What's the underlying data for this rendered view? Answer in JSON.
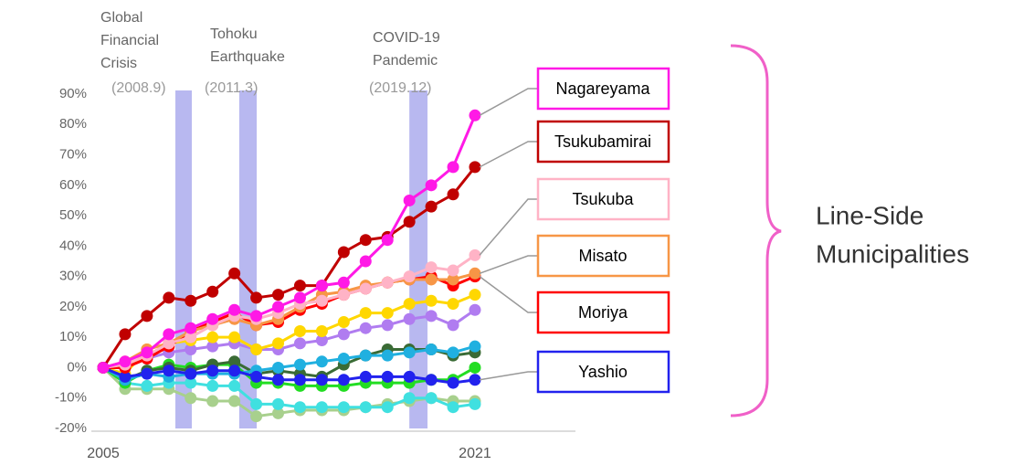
{
  "chart_data": {
    "type": "line",
    "categories": [
      "2005",
      null,
      null,
      null,
      null,
      null,
      null,
      null,
      null,
      null,
      null,
      null,
      null,
      null,
      null,
      null,
      null,
      "2021"
    ],
    "ylim": [
      -20,
      90
    ],
    "yticks": [
      {
        "value": -20,
        "label": "-20%"
      },
      {
        "value": -10,
        "label": "-10%"
      },
      {
        "value": 0,
        "label": "0%"
      },
      {
        "value": 10,
        "label": "10%"
      },
      {
        "value": 20,
        "label": "20%"
      },
      {
        "value": 30,
        "label": "30%"
      },
      {
        "value": 40,
        "label": "40%"
      },
      {
        "value": 50,
        "label": "50%"
      },
      {
        "value": 60,
        "label": "60%"
      },
      {
        "value": 70,
        "label": "70%"
      },
      {
        "value": 80,
        "label": "80%"
      },
      {
        "value": 90,
        "label": "90%"
      }
    ],
    "grid": false,
    "events": [
      {
        "label": [
          "Global",
          "Financial",
          "Crisis"
        ],
        "date": "(2008.9)",
        "band": [
          3.3,
          4.05
        ],
        "color": "#b8b8f0"
      },
      {
        "label": [
          "Tohoku",
          "Earthquake"
        ],
        "date": "(2011.3)",
        "band": [
          6.22,
          7.02
        ],
        "color": "#b8b8f0"
      },
      {
        "label": [
          "COVID-19",
          "Pandemic"
        ],
        "date": "(2019.12)",
        "band": [
          14.0,
          14.83
        ],
        "color": "#b8b8f0"
      }
    ],
    "series": [
      {
        "color": "#a8d08d",
        "values": [
          0,
          -7,
          -7,
          -7,
          -10,
          -11,
          -11,
          -16,
          -15,
          -14,
          -14,
          -14,
          -13,
          -12,
          -11,
          -10,
          -11,
          -11
        ]
      },
      {
        "color": "#40e0e0",
        "values": [
          0,
          -5,
          -6,
          -5,
          -5,
          -6,
          -6,
          -12,
          -12,
          -13,
          -13,
          -13,
          -13,
          -13,
          -10,
          -10,
          -13,
          -12
        ]
      },
      {
        "color": "#22dd22",
        "values": [
          0,
          -5,
          -1,
          1,
          0,
          1,
          1,
          -5,
          -5,
          -6,
          -6,
          -6,
          -5,
          -5,
          -5,
          -4,
          -4,
          0
        ]
      },
      {
        "color": "#3a6b35",
        "values": [
          0,
          -4,
          -1,
          0,
          -1,
          1,
          2,
          -2,
          -1,
          -2,
          -3,
          1,
          4,
          6,
          6,
          6,
          4,
          5
        ]
      },
      {
        "color": "#20b0e0",
        "values": [
          0,
          -4,
          -2,
          -3,
          -2,
          -2,
          -2,
          -1,
          0,
          1,
          2,
          3,
          4,
          4,
          5,
          6,
          5,
          7
        ]
      },
      {
        "color": "#b07cf0",
        "values": [
          0,
          0,
          3,
          5,
          6,
          7,
          8,
          6,
          6,
          8,
          9,
          11,
          13,
          14,
          16,
          17,
          14,
          19
        ]
      },
      {
        "color": "#ffd700",
        "values": [
          0,
          -2,
          6,
          8,
          9,
          10,
          10,
          6,
          8,
          12,
          12,
          15,
          18,
          18,
          21,
          22,
          21,
          24
        ]
      },
      {
        "name": "Yashio",
        "color": "#2222ee",
        "values": [
          0,
          -3,
          -2,
          -1,
          -2,
          -1,
          -1,
          -3,
          -4,
          -4,
          -4,
          -4,
          -3,
          -3,
          -3,
          -4,
          -5,
          -4
        ]
      },
      {
        "name": "Moriya",
        "color": "#ff0000",
        "values": [
          0,
          0,
          3,
          7,
          12,
          15,
          18,
          14,
          15,
          19,
          21,
          24,
          26,
          28,
          29,
          30,
          27,
          30
        ]
      },
      {
        "name": "Misato",
        "color": "#f79646",
        "values": [
          0,
          2,
          6,
          8,
          12,
          14,
          16,
          14,
          16,
          20,
          24,
          25,
          27,
          28,
          29,
          29,
          29,
          31
        ]
      },
      {
        "name": "Tsukuba",
        "color": "#ffb3c6",
        "values": [
          0,
          1,
          4,
          8,
          10,
          14,
          17,
          16,
          18,
          21,
          22,
          24,
          26,
          28,
          30,
          33,
          32,
          37
        ]
      },
      {
        "name": "Tsukubamirai",
        "color": "#c00000",
        "values": [
          0,
          11,
          17,
          23,
          22,
          25,
          31,
          23,
          24,
          27,
          27,
          38,
          42,
          43,
          48,
          53,
          57,
          66
        ]
      },
      {
        "name": "Nagareyama",
        "color": "#ff19e6",
        "values": [
          0,
          2,
          5,
          11,
          13,
          16,
          19,
          17,
          20,
          23,
          27,
          28,
          35,
          42,
          55,
          60,
          66,
          83
        ]
      }
    ],
    "brace_label": [
      "Line-Side",
      "Municipalities"
    ],
    "brace_color": "#f060c8"
  }
}
